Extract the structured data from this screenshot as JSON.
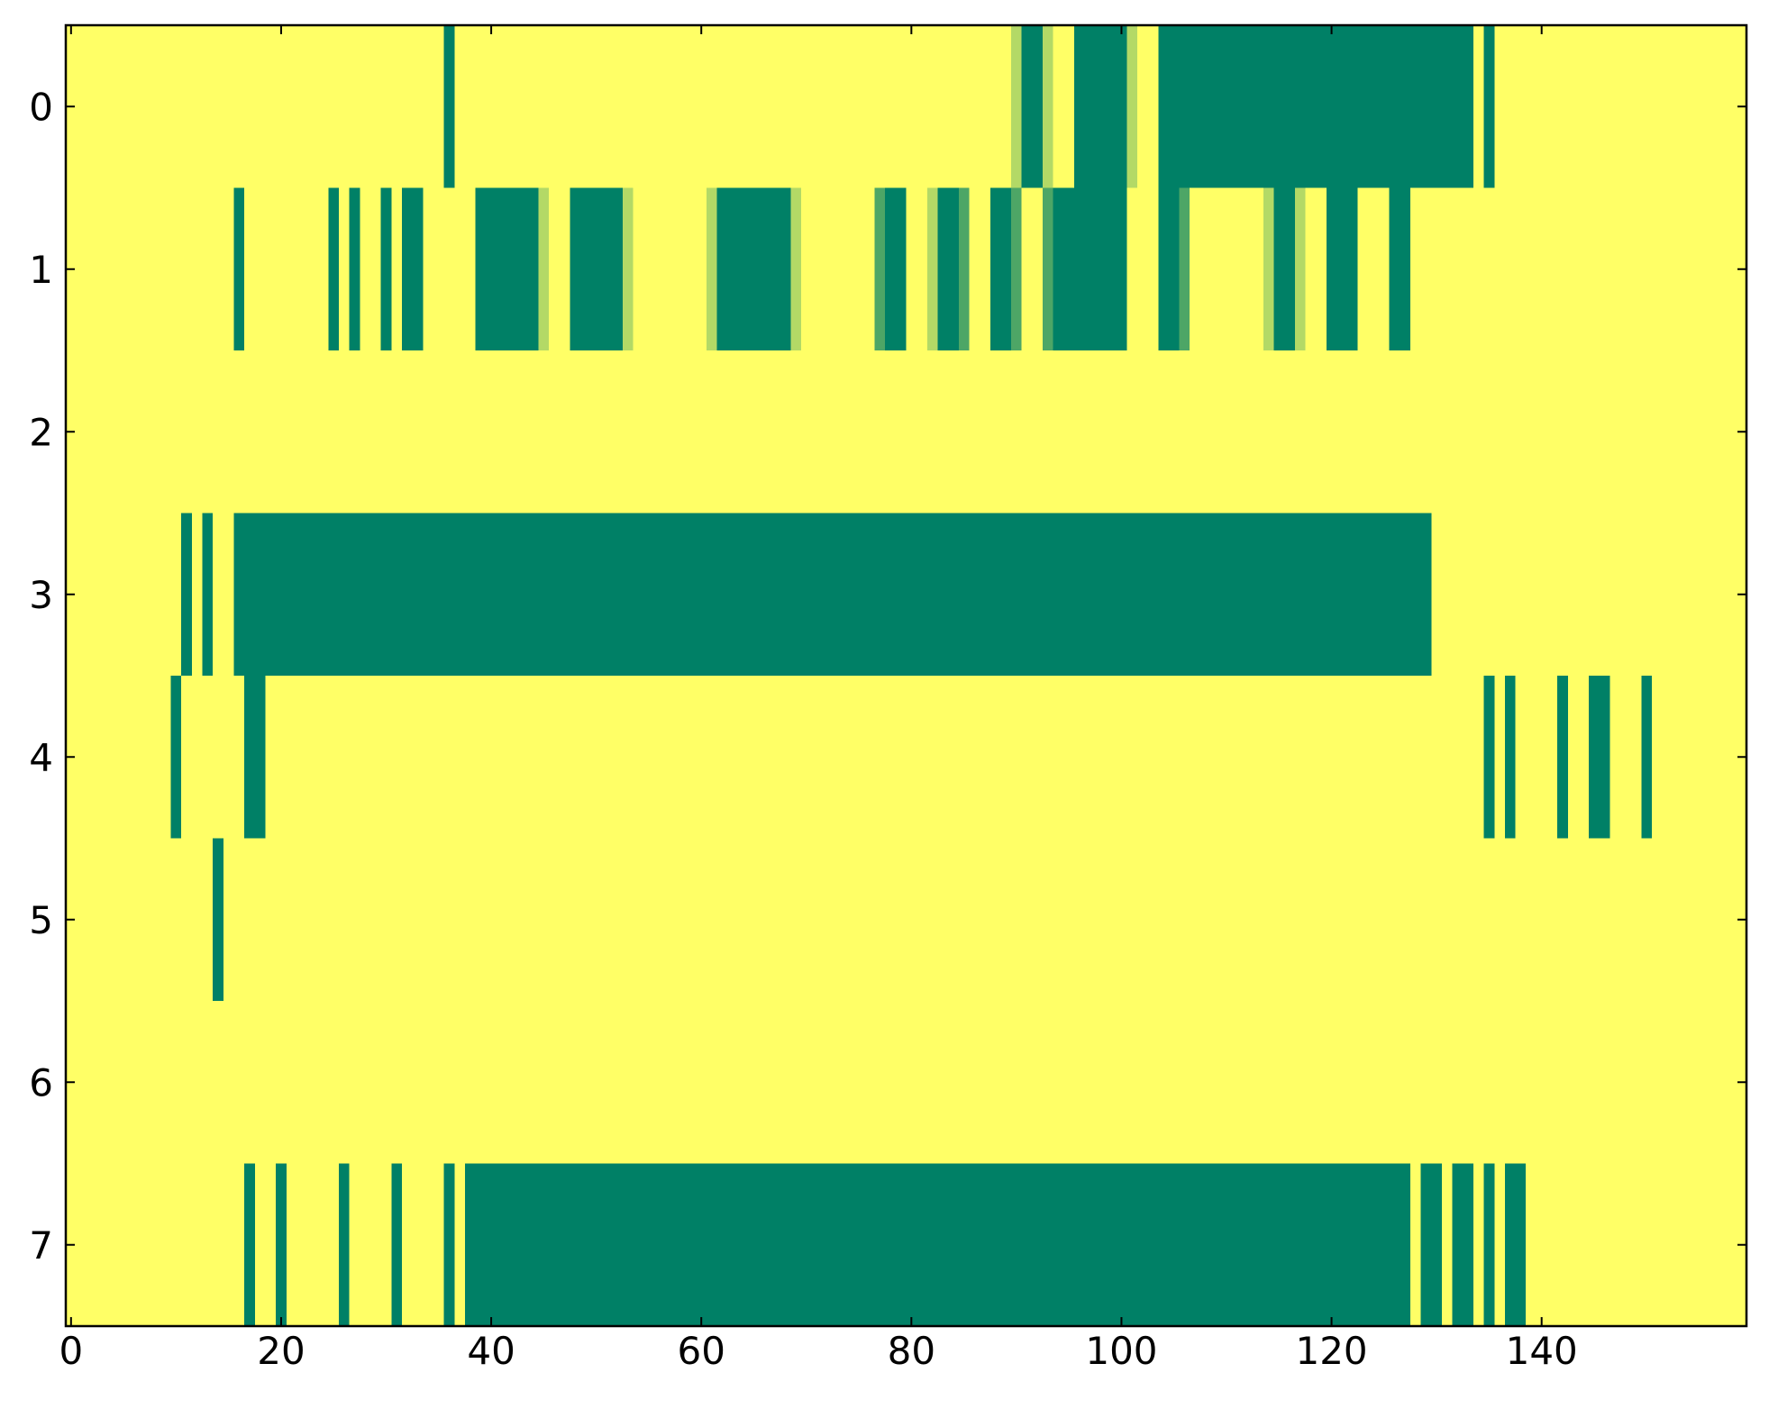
{
  "chart_data": {
    "type": "heatmap",
    "colors": [
      "#008066",
      "#ffff66"
    ],
    "xlim": [
      -0.5,
      159.5
    ],
    "ylim": [
      7.5,
      -0.5
    ],
    "xticks": [
      0,
      20,
      40,
      60,
      80,
      100,
      120,
      140
    ],
    "yticks": [
      0,
      1,
      2,
      3,
      4,
      5,
      6,
      7
    ],
    "values": [
      [
        1,
        1,
        1,
        1,
        1,
        1,
        1,
        1,
        1,
        1,
        1,
        1,
        1,
        1,
        1,
        1,
        1,
        1,
        1,
        1,
        1,
        1,
        1,
        1,
        1,
        1,
        1,
        1,
        1,
        1,
        1,
        1,
        1,
        1,
        1,
        1,
        0,
        1,
        1,
        1,
        1,
        1,
        1,
        1,
        1,
        1,
        1,
        1,
        1,
        1,
        1,
        1,
        1,
        1,
        1,
        1,
        1,
        1,
        1,
        1,
        1,
        1,
        1,
        1,
        1,
        1,
        1,
        1,
        1,
        1,
        1,
        1,
        1,
        1,
        1,
        1,
        1,
        1,
        1,
        1,
        1,
        1,
        1,
        1,
        1,
        1,
        1,
        1,
        1,
        1,
        0.7,
        0,
        0,
        0.7,
        1,
        1,
        0,
        0,
        0,
        0,
        0,
        0.7,
        1,
        1,
        0,
        0,
        0,
        0,
        0,
        0,
        0,
        0,
        0,
        0,
        0,
        0,
        0,
        0,
        0,
        0,
        0,
        0,
        0,
        0,
        0,
        0,
        0,
        0,
        0,
        0,
        0,
        0,
        0,
        0,
        1,
        0,
        1,
        1,
        1,
        1,
        1,
        1,
        1,
        1,
        1,
        1,
        1,
        1,
        1,
        1,
        1,
        1,
        1,
        1,
        1,
        1,
        1,
        1,
        1,
        1
      ],
      [
        1,
        1,
        1,
        1,
        1,
        1,
        1,
        1,
        1,
        1,
        1,
        1,
        1,
        1,
        1,
        1,
        0,
        1,
        1,
        1,
        1,
        1,
        1,
        1,
        1,
        0,
        1,
        0,
        1,
        1,
        0,
        1,
        0,
        0,
        1,
        1,
        1,
        1,
        1,
        0,
        0,
        0,
        0,
        0,
        0,
        0.7,
        1,
        1,
        0,
        0,
        0,
        0,
        0,
        0.7,
        1,
        1,
        1,
        1,
        1,
        1,
        1,
        0.7,
        0,
        0,
        0,
        0,
        0,
        0,
        0,
        0.7,
        1,
        1,
        1,
        1,
        1,
        1,
        1,
        0.3,
        0,
        0,
        1,
        1,
        0.7,
        0,
        0,
        0.3,
        1,
        1,
        0,
        0,
        0.3,
        1,
        1,
        0.3,
        0,
        0,
        0,
        0,
        0,
        0,
        0,
        1,
        1,
        1,
        0,
        0,
        0.3,
        1,
        1,
        1,
        1,
        1,
        1,
        1,
        0.7,
        0,
        0,
        0.7,
        1,
        1,
        0,
        0,
        0,
        1,
        1,
        1,
        0,
        0,
        1,
        1,
        1,
        1,
        1,
        1,
        1,
        1,
        1,
        1,
        1,
        1,
        1,
        1,
        1,
        1,
        1,
        1,
        1,
        1,
        1,
        1,
        1,
        1,
        1,
        1,
        1,
        1,
        1,
        1,
        1,
        1
      ],
      [
        1,
        1,
        1,
        1,
        1,
        1,
        1,
        1,
        1,
        1,
        1,
        1,
        1,
        1,
        1,
        1,
        1,
        1,
        1,
        1,
        1,
        1,
        1,
        1,
        1,
        1,
        1,
        1,
        1,
        1,
        1,
        1,
        1,
        1,
        1,
        1,
        1,
        1,
        1,
        1,
        1,
        1,
        1,
        1,
        1,
        1,
        1,
        1,
        1,
        1,
        1,
        1,
        1,
        1,
        1,
        1,
        1,
        1,
        1,
        1,
        1,
        1,
        1,
        1,
        1,
        1,
        1,
        1,
        1,
        1,
        1,
        1,
        1,
        1,
        1,
        1,
        1,
        1,
        1,
        1,
        1,
        1,
        1,
        1,
        1,
        1,
        1,
        1,
        1,
        1,
        1,
        1,
        1,
        1,
        1,
        1,
        1,
        1,
        1,
        1,
        1,
        1,
        1,
        1,
        1,
        1,
        1,
        1,
        1,
        1,
        1,
        1,
        1,
        1,
        1,
        1,
        1,
        1,
        1,
        1,
        1,
        1,
        1,
        1,
        1,
        1,
        1,
        1,
        1,
        1,
        1,
        1,
        1,
        1,
        1,
        1,
        1,
        1,
        1,
        1,
        1,
        1,
        1,
        1,
        1,
        1,
        1,
        1,
        1,
        1,
        1,
        1,
        1,
        1,
        1,
        1,
        1,
        1,
        1,
        1
      ],
      [
        1,
        1,
        1,
        1,
        1,
        1,
        1,
        1,
        1,
        1,
        1,
        0,
        1,
        0,
        1,
        1,
        0,
        0,
        0,
        0,
        0,
        0,
        0,
        0,
        0,
        0,
        0,
        0,
        0,
        0,
        0,
        0,
        0,
        0,
        0,
        0,
        0,
        0,
        0,
        0,
        0,
        0,
        0,
        0,
        0,
        0,
        0,
        0,
        0,
        0,
        0,
        0,
        0,
        0,
        0,
        0,
        0,
        0,
        0,
        0,
        0,
        0,
        0,
        0,
        0,
        0,
        0,
        0,
        0,
        0,
        0,
        0,
        0,
        0,
        0,
        0,
        0,
        0,
        0,
        0,
        0,
        0,
        0,
        0,
        0,
        0,
        0,
        0,
        0,
        0,
        0,
        0,
        0,
        0,
        0,
        0,
        0,
        0,
        0,
        0,
        0,
        0,
        0,
        0,
        0,
        0,
        0,
        0,
        0,
        0,
        0,
        0,
        0,
        0,
        0,
        0,
        0,
        0,
        0,
        0,
        0,
        0,
        0,
        0,
        0,
        0,
        0,
        0,
        0,
        0,
        1,
        1,
        1,
        1,
        1,
        1,
        1,
        1,
        1,
        1,
        1,
        1,
        1,
        1,
        1,
        1,
        1,
        1,
        1,
        1,
        1,
        1,
        1,
        1,
        1,
        1,
        1,
        1,
        1,
        1
      ],
      [
        1,
        1,
        1,
        1,
        1,
        1,
        1,
        1,
        1,
        1,
        0,
        1,
        1,
        1,
        1,
        1,
        1,
        0,
        0,
        1,
        1,
        1,
        1,
        1,
        1,
        1,
        1,
        1,
        1,
        1,
        1,
        1,
        1,
        1,
        1,
        1,
        1,
        1,
        1,
        1,
        1,
        1,
        1,
        1,
        1,
        1,
        1,
        1,
        1,
        1,
        1,
        1,
        1,
        1,
        1,
        1,
        1,
        1,
        1,
        1,
        1,
        1,
        1,
        1,
        1,
        1,
        1,
        1,
        1,
        1,
        1,
        1,
        1,
        1,
        1,
        1,
        1,
        1,
        1,
        1,
        1,
        1,
        1,
        1,
        1,
        1,
        1,
        1,
        1,
        1,
        1,
        1,
        1,
        1,
        1,
        1,
        1,
        1,
        1,
        1,
        1,
        1,
        1,
        1,
        1,
        1,
        1,
        1,
        1,
        1,
        1,
        1,
        1,
        1,
        1,
        1,
        1,
        1,
        1,
        1,
        1,
        1,
        1,
        1,
        1,
        1,
        1,
        1,
        1,
        1,
        1,
        1,
        1,
        1,
        1,
        0,
        1,
        0,
        1,
        1,
        1,
        1,
        0,
        1,
        1,
        0,
        0,
        1,
        1,
        1,
        0,
        1,
        1,
        1,
        1,
        1,
        1,
        1,
        1,
        1
      ],
      [
        1,
        1,
        1,
        1,
        1,
        1,
        1,
        1,
        1,
        1,
        1,
        1,
        1,
        1,
        0,
        1,
        1,
        1,
        1,
        1,
        1,
        1,
        1,
        1,
        1,
        1,
        1,
        1,
        1,
        1,
        1,
        1,
        1,
        1,
        1,
        1,
        1,
        1,
        1,
        1,
        1,
        1,
        1,
        1,
        1,
        1,
        1,
        1,
        1,
        1,
        1,
        1,
        1,
        1,
        1,
        1,
        1,
        1,
        1,
        1,
        1,
        1,
        1,
        1,
        1,
        1,
        1,
        1,
        1,
        1,
        1,
        1,
        1,
        1,
        1,
        1,
        1,
        1,
        1,
        1,
        1,
        1,
        1,
        1,
        1,
        1,
        1,
        1,
        1,
        1,
        1,
        1,
        1,
        1,
        1,
        1,
        1,
        1,
        1,
        1,
        1,
        1,
        1,
        1,
        1,
        1,
        1,
        1,
        1,
        1,
        1,
        1,
        1,
        1,
        1,
        1,
        1,
        1,
        1,
        1,
        1,
        1,
        1,
        1,
        1,
        1,
        1,
        1,
        1,
        1,
        1,
        1,
        1,
        1,
        1,
        1,
        1,
        1,
        1,
        1,
        1,
        1,
        1,
        1,
        1,
        1,
        1,
        1,
        1,
        1,
        1,
        1,
        1,
        1,
        1,
        1,
        1,
        1,
        1,
        1
      ],
      [
        1,
        1,
        1,
        1,
        1,
        1,
        1,
        1,
        1,
        1,
        1,
        1,
        1,
        1,
        1,
        1,
        1,
        1,
        1,
        1,
        1,
        1,
        1,
        1,
        1,
        1,
        1,
        1,
        1,
        1,
        1,
        1,
        1,
        1,
        1,
        1,
        1,
        1,
        1,
        1,
        1,
        1,
        1,
        1,
        1,
        1,
        1,
        1,
        1,
        1,
        1,
        1,
        1,
        1,
        1,
        1,
        1,
        1,
        1,
        1,
        1,
        1,
        1,
        1,
        1,
        1,
        1,
        1,
        1,
        1,
        1,
        1,
        1,
        1,
        1,
        1,
        1,
        1,
        1,
        1,
        1,
        1,
        1,
        1,
        1,
        1,
        1,
        1,
        1,
        1,
        1,
        1,
        1,
        1,
        1,
        1,
        1,
        1,
        1,
        1,
        1,
        1,
        1,
        1,
        1,
        1,
        1,
        1,
        1,
        1,
        1,
        1,
        1,
        1,
        1,
        1,
        1,
        1,
        1,
        1,
        1,
        1,
        1,
        1,
        1,
        1,
        1,
        1,
        1,
        1,
        1,
        1,
        1,
        1,
        1,
        1,
        1,
        1,
        1,
        1,
        1,
        1,
        1,
        1,
        1,
        1,
        1,
        1,
        1,
        1,
        1,
        1,
        1,
        1,
        1,
        1,
        1,
        1,
        1,
        1
      ],
      [
        1,
        1,
        1,
        1,
        1,
        1,
        1,
        1,
        1,
        1,
        1,
        1,
        1,
        1,
        1,
        1,
        1,
        0,
        1,
        1,
        0,
        1,
        1,
        1,
        1,
        1,
        0,
        1,
        1,
        1,
        1,
        0,
        1,
        1,
        1,
        1,
        0,
        1,
        0,
        0,
        0,
        0,
        0,
        0,
        0,
        0,
        0,
        0,
        0,
        0,
        0,
        0,
        0,
        0,
        0,
        0,
        0,
        0,
        0,
        0,
        0,
        0,
        0,
        0,
        0,
        0,
        0,
        0,
        0,
        0,
        0,
        0,
        0,
        0,
        0,
        0,
        0,
        0,
        0,
        0,
        0,
        0,
        0,
        0,
        0,
        0,
        0,
        0,
        0,
        0,
        0,
        0,
        0,
        0,
        0,
        0,
        0,
        0,
        0,
        0,
        0,
        0,
        0,
        0,
        0,
        0,
        0,
        0,
        0,
        0,
        0,
        0,
        0,
        0,
        0,
        0,
        0,
        0,
        0,
        0,
        0,
        0,
        0,
        0,
        0,
        0,
        0,
        0,
        1,
        0,
        0,
        1,
        0,
        0,
        1,
        0,
        1,
        0,
        0,
        1,
        1,
        1,
        1,
        1,
        1,
        1,
        1,
        1,
        1,
        1,
        1,
        1,
        1,
        1,
        1,
        1,
        1,
        1,
        1,
        1
      ]
    ]
  }
}
